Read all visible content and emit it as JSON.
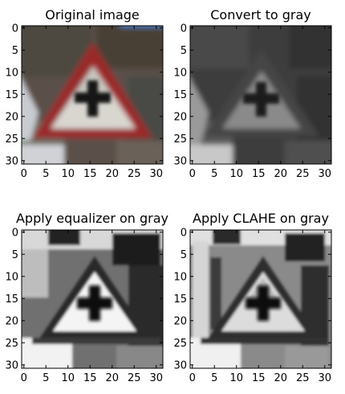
{
  "figure": {
    "panels": [
      {
        "title": "Original image",
        "xticks": [
          "0",
          "5",
          "10",
          "15",
          "20",
          "25",
          "30"
        ],
        "yticks": [
          "0",
          "5",
          "10",
          "15",
          "20",
          "25",
          "30"
        ],
        "image_style": "color"
      },
      {
        "title": "Convert to gray",
        "xticks": [
          "0",
          "5",
          "10",
          "15",
          "20",
          "25",
          "30"
        ],
        "yticks": [
          "0",
          "5",
          "10",
          "15",
          "20",
          "25",
          "30"
        ],
        "image_style": "gray"
      },
      {
        "title": "Apply equalizer on gray",
        "xticks": [
          "0",
          "5",
          "10",
          "15",
          "20",
          "25",
          "30"
        ],
        "yticks": [
          "0",
          "5",
          "10",
          "15",
          "20",
          "25",
          "30"
        ],
        "image_style": "equalized"
      },
      {
        "title": "Apply CLAHE on gray",
        "xticks": [
          "0",
          "5",
          "10",
          "15",
          "20",
          "25",
          "30"
        ],
        "yticks": [
          "0",
          "5",
          "10",
          "15",
          "20",
          "25",
          "30"
        ],
        "image_style": "clahe"
      }
    ]
  },
  "colors": {
    "frame": "#000000",
    "sign_red": "#9a2a2a",
    "sign_white": "#e8e8e6",
    "symbol_black": "#111111"
  }
}
